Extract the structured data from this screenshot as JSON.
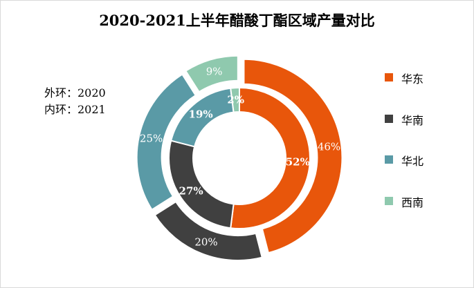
{
  "chart_data": {
    "type": "pie",
    "title": "2020-2021上半年醋酸丁酯区域产量对比",
    "notes": [
      "外环：2020",
      "内环：2021"
    ],
    "categories": [
      "华东",
      "华南",
      "华北",
      "西南"
    ],
    "colors": [
      "#e8560b",
      "#404040",
      "#5a9aa6",
      "#8fc9ae"
    ],
    "series": [
      {
        "name": "2020",
        "ring": "outer",
        "values": [
          46,
          20,
          25,
          9
        ],
        "labels": [
          "46%",
          "20%",
          "25%",
          "9%"
        ]
      },
      {
        "name": "2021",
        "ring": "inner",
        "values": [
          52,
          27,
          19,
          2
        ],
        "labels": [
          "52%",
          "27%",
          "19%",
          "2%"
        ]
      }
    ],
    "legend_position": "right"
  }
}
